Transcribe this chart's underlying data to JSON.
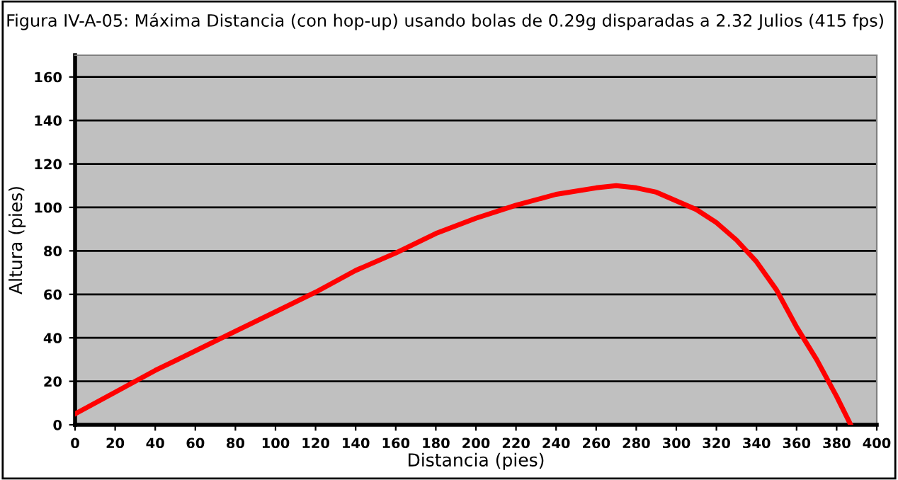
{
  "chart_data": {
    "type": "line",
    "title": "Figura IV-A-05: Máxima Distancia (con hop-up) usando bolas de 0.29g disparadas a 2.32 Julios (415 fps)",
    "xlabel": "Distancia (pies)",
    "ylabel": "Altura (pies)",
    "series": [
      {
        "color": "#ff0000",
        "x": [
          0,
          20,
          40,
          60,
          80,
          100,
          120,
          140,
          160,
          180,
          200,
          220,
          240,
          260,
          270,
          280,
          290,
          300,
          310,
          320,
          330,
          340,
          350,
          360,
          370,
          380,
          387
        ],
        "values": [
          5,
          15,
          25,
          34,
          43,
          52,
          61,
          71,
          79,
          88,
          95,
          101,
          106,
          109,
          110,
          109,
          107,
          103,
          99,
          93,
          85,
          75,
          62,
          45,
          30,
          13,
          0
        ]
      }
    ],
    "xlim": [
      0,
      400
    ],
    "xticks": [
      0,
      20,
      40,
      60,
      80,
      100,
      120,
      140,
      160,
      180,
      200,
      220,
      240,
      260,
      280,
      300,
      320,
      340,
      360,
      380,
      400
    ],
    "ylim": [
      0,
      170
    ],
    "yticks": [
      0,
      20,
      40,
      60,
      80,
      100,
      120,
      140,
      160
    ],
    "grid": "y",
    "legend": false,
    "marker": "none",
    "line_style": "solid"
  }
}
